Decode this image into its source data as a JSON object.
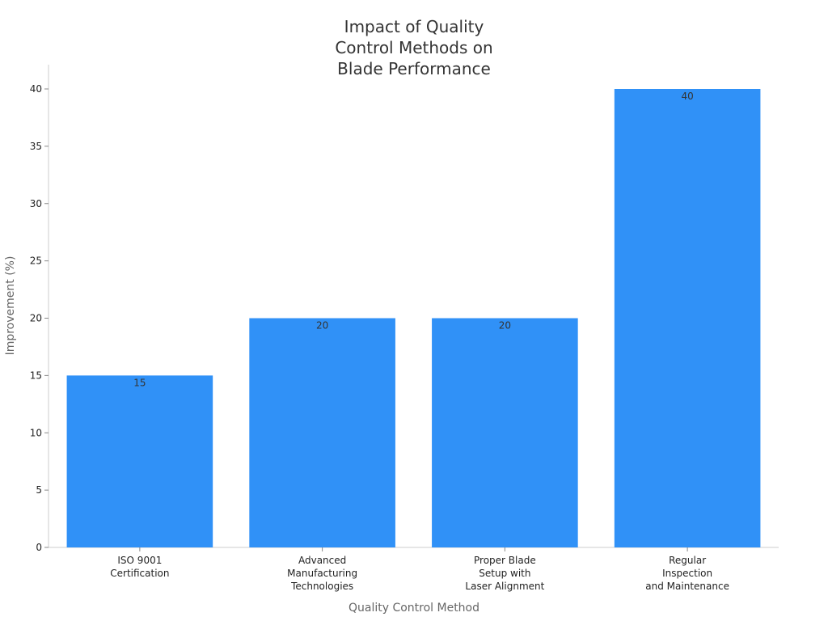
{
  "chart_data": {
    "type": "bar",
    "title": "Impact of Quality\nControl Methods on\nBlade Performance",
    "x_label": "Quality Control Method",
    "y_label": "Improvement (%)",
    "categories": [
      "ISO 9001\nCertification",
      "Advanced\nManufacturing\nTechnologies",
      "Proper Blade\nSetup with\nLaser Alignment",
      "Regular\nInspection\nand Maintenance"
    ],
    "values": [
      15,
      20,
      20,
      40
    ],
    "color": "#3091f7",
    "ylim": [
      0,
      42
    ],
    "yticks": [
      0,
      5,
      10,
      15,
      20,
      25,
      30,
      35,
      40
    ]
  }
}
